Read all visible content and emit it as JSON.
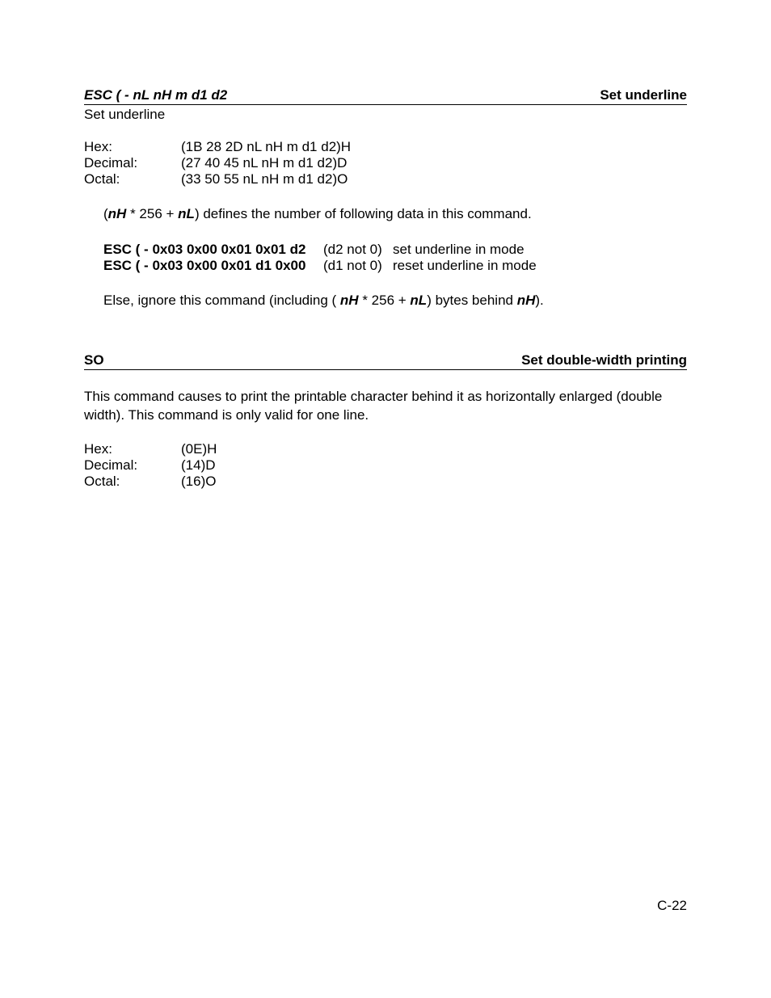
{
  "section1": {
    "header_left": "ESC ( - nL nH m d1 d2",
    "header_right": "Set underline",
    "subtitle": "Set underline",
    "codes": {
      "hex_label": "Hex:",
      "hex_value": "(1B 28 2D nL nH m d1 d2)H",
      "dec_label": "Decimal:",
      "dec_value": "(27 40 45 nL nH m d1 d2)D",
      "oct_label": "Octal:",
      "oct_value": "(33 50 55 nL nH m d1 d2)O"
    },
    "para1_open": "(",
    "para1_nH": "nH",
    "para1_mid1": " * 256 + ",
    "para1_nL": "nL",
    "para1_end": ") defines the number of following data in this command.",
    "modes": {
      "row1_cmd": "ESC ( - 0x03 0x00 0x01 0x01 d2",
      "row1_cond": "(d2 not 0)",
      "row1_desc": "set underline in mode",
      "row2_cmd": "ESC ( - 0x03 0x00 0x01 d1 0x00",
      "row2_cond": "(d1 not 0)",
      "row2_desc": "reset underline in mode"
    },
    "para2_pre": "Else, ignore this command (including ( ",
    "para2_nH": "nH",
    "para2_mid": " * 256 + ",
    "para2_nL": "nL",
    "para2_mid2": ") bytes behind ",
    "para2_nH2": "nH",
    "para2_end": ")."
  },
  "section2": {
    "header_left": "SO",
    "header_right": "Set double-width printing",
    "para": "This command causes to print the printable character behind it as horizontally enlarged (double width). This command is only valid for one line.",
    "codes": {
      "hex_label": "Hex:",
      "hex_value": "(0E)H",
      "dec_label": "Decimal:",
      "dec_value": "(14)D",
      "oct_label": "Octal:",
      "oct_value": "(16)O"
    }
  },
  "page_number": "C-22"
}
